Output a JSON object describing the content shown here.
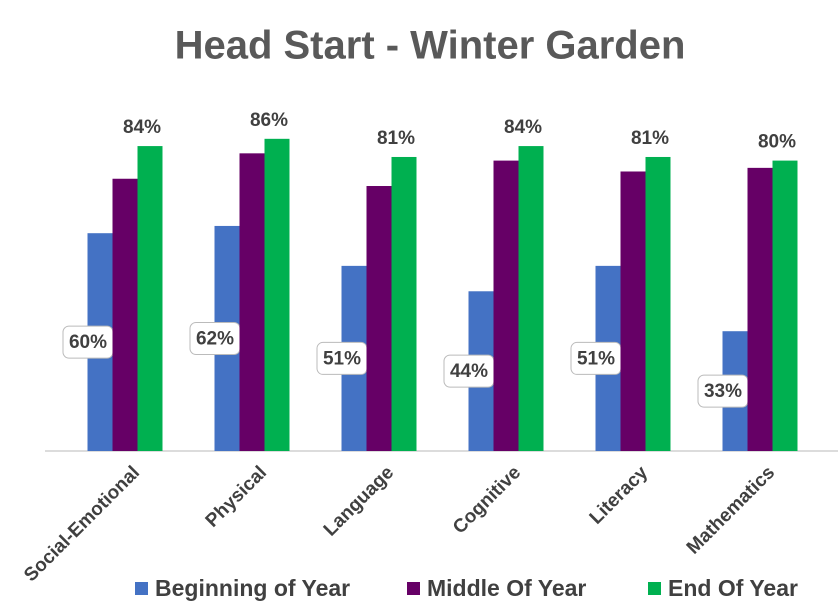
{
  "chart_data": {
    "type": "bar",
    "title": "Head Start - Winter Garden",
    "categories": [
      "Social-Emotional",
      "Physical",
      "Language",
      "Cognitive",
      "Literacy",
      "Mathematics"
    ],
    "series": [
      {
        "name": "Beginning of Year",
        "color": "#4472c4",
        "values": [
          60,
          62,
          51,
          44,
          51,
          33
        ],
        "value_labels": [
          "60%",
          "62%",
          "51%",
          "44%",
          "51%",
          "33%"
        ]
      },
      {
        "name": "Middle Of Year",
        "color": "#660066",
        "values": [
          75,
          82,
          73,
          80,
          77,
          78
        ]
      },
      {
        "name": "End Of Year",
        "color": "#00b050",
        "values": [
          84,
          86,
          81,
          84,
          81,
          80
        ],
        "value_labels": [
          "84%",
          "86%",
          "81%",
          "84%",
          "81%",
          "80%"
        ]
      }
    ],
    "ylim": [
      0,
      100
    ]
  }
}
